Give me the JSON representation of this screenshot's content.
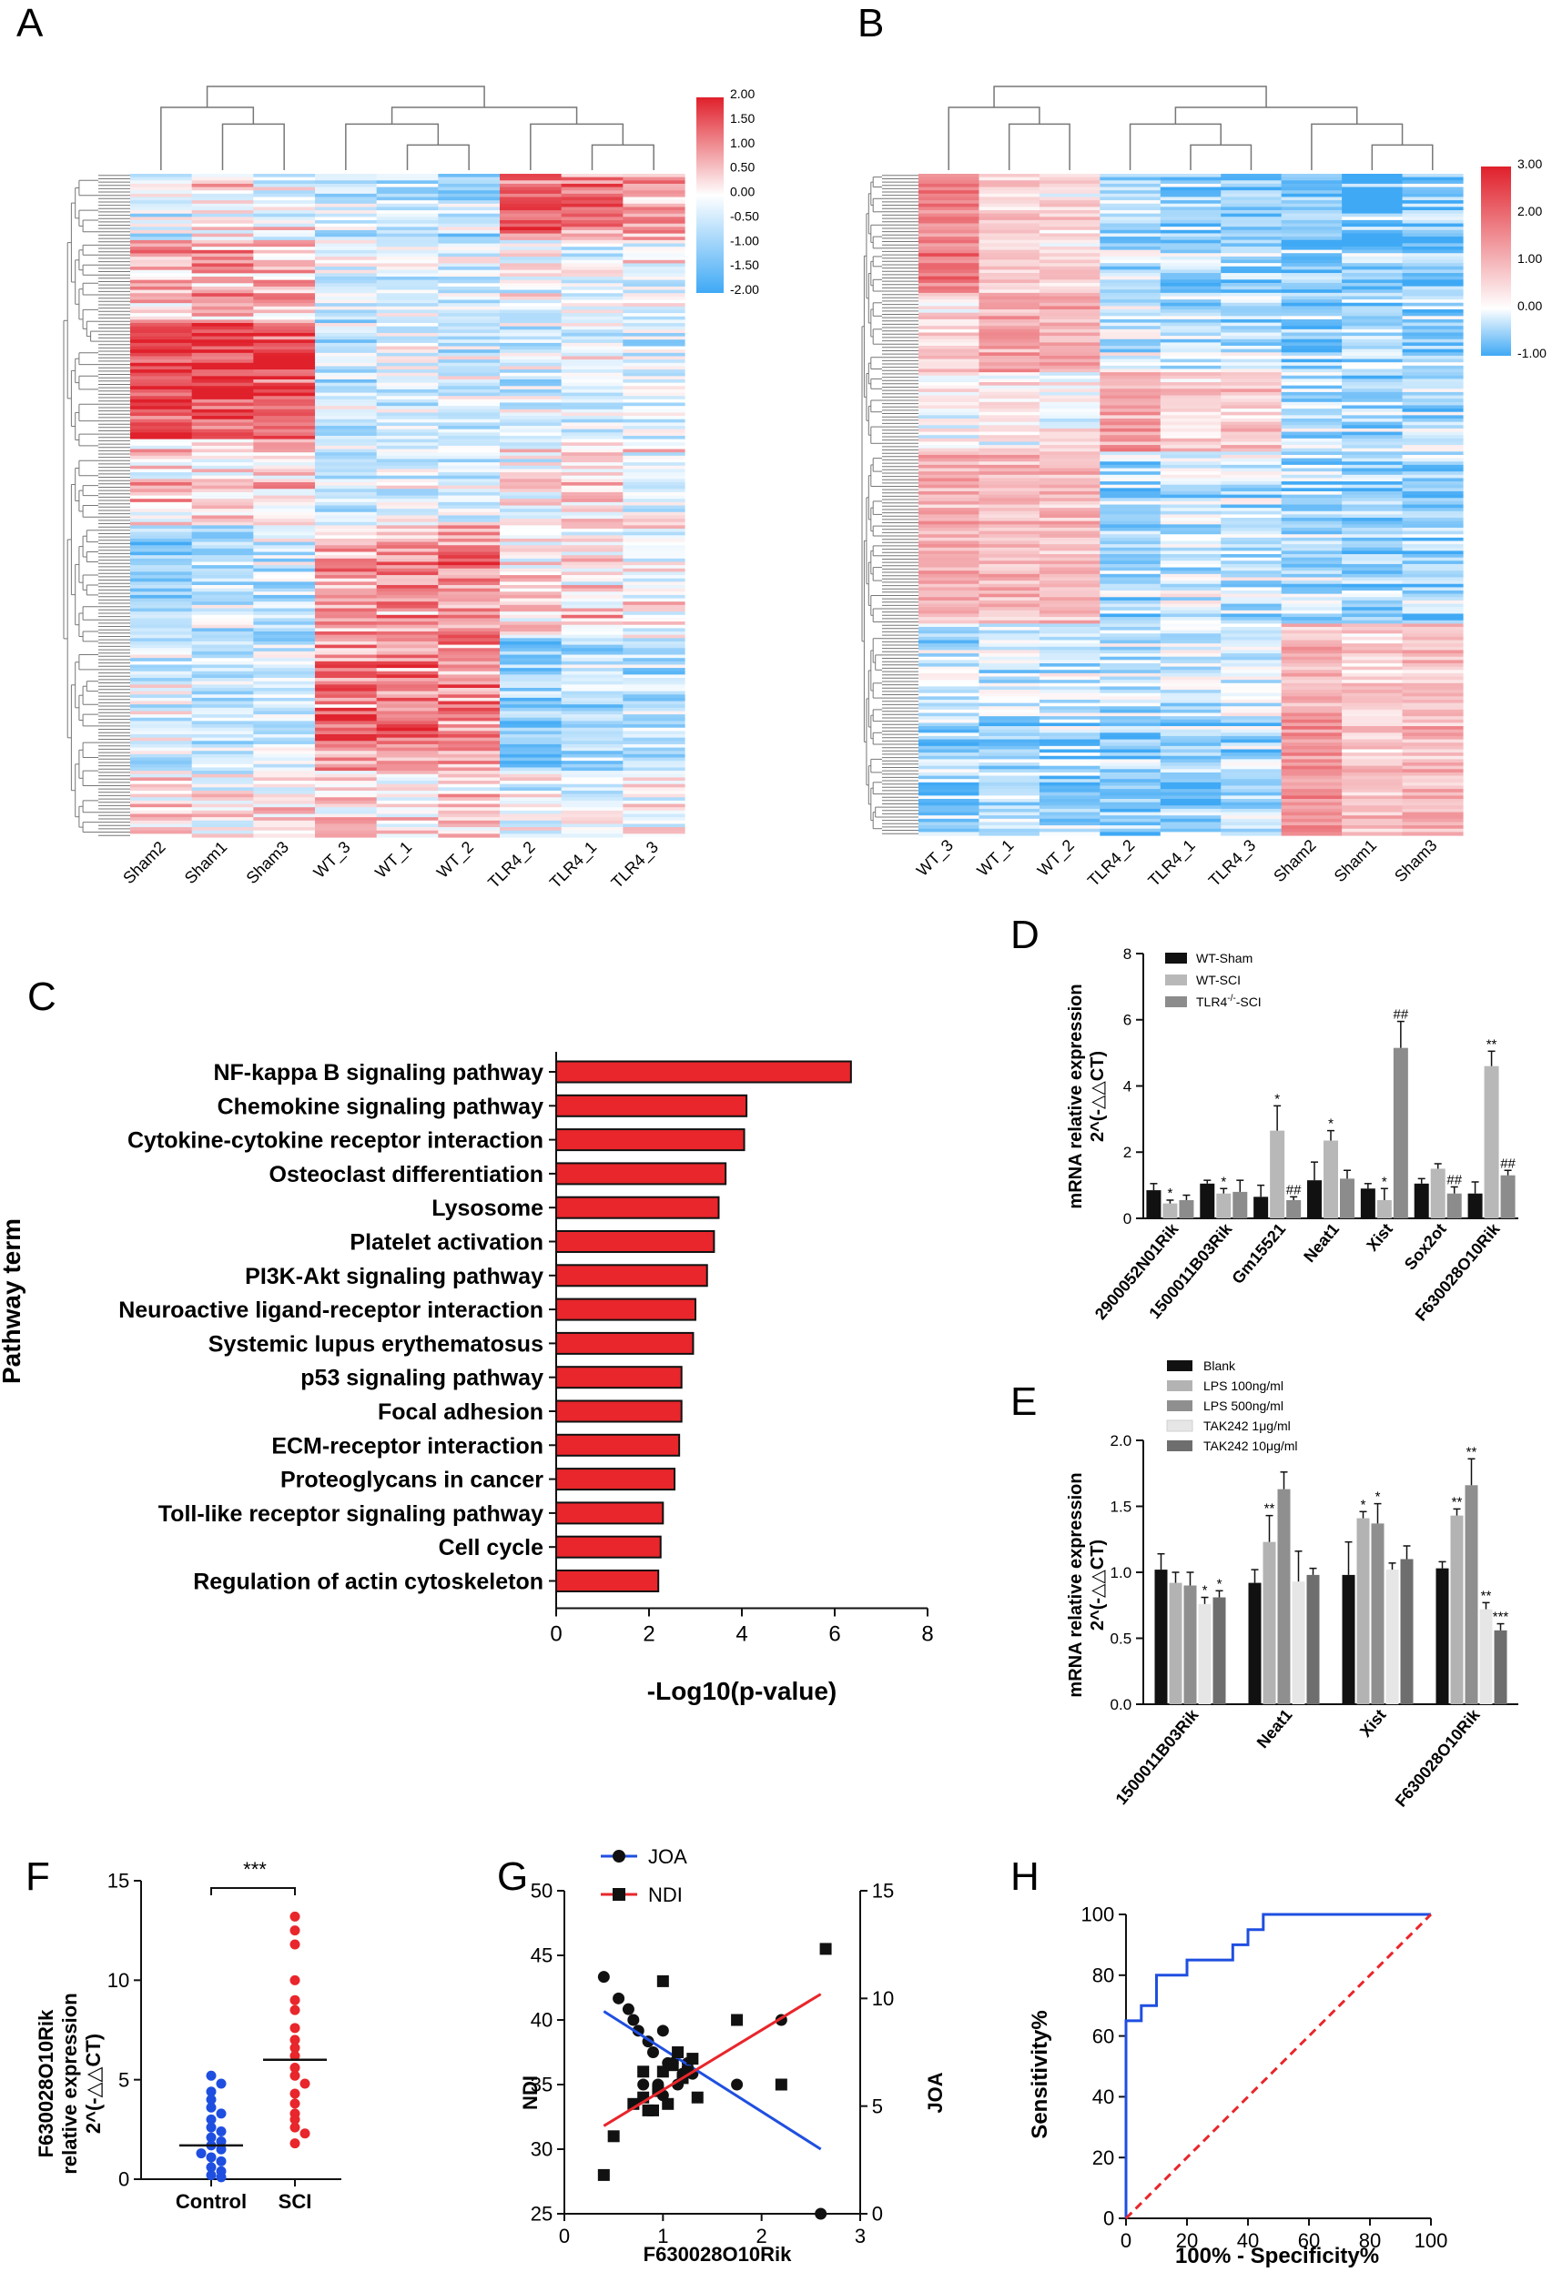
{
  "chart_data": [
    {
      "id": "A",
      "panel_label": "A",
      "type": "heatmap",
      "columns": [
        "Sham2",
        "Sham1",
        "Sham3",
        "WT_3",
        "WT_1",
        "WT_2",
        "TLR4_2",
        "TLR4_1",
        "TLR4_3"
      ],
      "colorbar_ticks": [
        "2.00",
        "1.50",
        "1.00",
        "0.50",
        "0.00",
        "-0.50",
        "-1.00",
        "-1.50",
        "-2.00"
      ],
      "color_range": [
        -2,
        2
      ],
      "colors": {
        "low": "#3fa9f5",
        "mid": "#ffffff",
        "high": "#e0202b"
      },
      "dendrogram": "rows and columns"
    },
    {
      "id": "B",
      "panel_label": "B",
      "type": "heatmap",
      "columns": [
        "WT_3",
        "WT_1",
        "WT_2",
        "TLR4_2",
        "TLR4_1",
        "TLR4_3",
        "Sham2",
        "Sham1",
        "Sham3"
      ],
      "colorbar_ticks": [
        "3.00",
        "2.00",
        "1.00",
        "0.00",
        "-1.00"
      ],
      "color_range": [
        -1,
        3
      ],
      "colors": {
        "low": "#3fa9f5",
        "mid": "#ffffff",
        "high": "#e0202b"
      },
      "dendrogram": "rows and columns"
    },
    {
      "id": "C",
      "panel_label": "C",
      "type": "bar",
      "orientation": "horizontal",
      "xlabel": "-Log10(p-value)",
      "ylabel": "Pathway term",
      "xlim": [
        0,
        8
      ],
      "xticks": [
        "0",
        "2",
        "4",
        "6",
        "8"
      ],
      "categories": [
        "NF-kappa B signaling pathway",
        "Chemokine signaling pathway",
        "Cytokine-cytokine receptor interaction",
        "Osteoclast differentiation",
        "Lysosome",
        "Platelet activation",
        "PI3K-Akt signaling pathway",
        "Neuroactive ligand-receptor interaction",
        "Systemic lupus erythematosus",
        "p53 signaling pathway",
        "Focal adhesion",
        "ECM-receptor interaction",
        "Proteoglycans in cancer",
        "Toll-like receptor signaling pathway",
        "Cell cycle",
        "Regulation of actin cytoskeleton"
      ],
      "values": [
        6.35,
        4.1,
        4.05,
        3.65,
        3.5,
        3.4,
        3.25,
        3.0,
        2.95,
        2.7,
        2.7,
        2.65,
        2.55,
        2.3,
        2.25,
        2.2
      ],
      "color": "#e8262b"
    },
    {
      "id": "D",
      "panel_label": "D",
      "type": "bar",
      "ylabel": [
        "mRNA relative expression",
        "2^(-△△CT)"
      ],
      "ylim": [
        0,
        8
      ],
      "yticks": [
        "0",
        "2",
        "4",
        "6",
        "8"
      ],
      "categories": [
        "2900052N01Rik",
        "1500011B03Rik",
        "Gm15521",
        "Neat1",
        "Xist",
        "Sox2ot",
        "F630028O10Rik"
      ],
      "legend": [
        "WT-Sham",
        "WT-SCI",
        "TLR4-/--SCI"
      ],
      "legend_main": [
        "WT-Sham",
        "WT-SCI",
        "TLR4"
      ],
      "legend_sup": "-/-",
      "legend_suffix": "-SCI",
      "series": [
        {
          "name": "WT-Sham",
          "color": "#111111",
          "values": [
            0.85,
            1.05,
            0.65,
            1.15,
            0.9,
            1.05,
            0.75
          ],
          "errors": [
            0.2,
            0.1,
            0.35,
            0.55,
            0.15,
            0.15,
            0.35
          ],
          "marks": [
            "",
            "",
            "",
            "",
            "",
            "",
            ""
          ]
        },
        {
          "name": "WT-SCI",
          "color": "#b8b8b8",
          "values": [
            0.45,
            0.75,
            2.65,
            2.35,
            0.55,
            1.5,
            4.6
          ],
          "errors": [
            0.1,
            0.15,
            0.75,
            0.3,
            0.35,
            0.15,
            0.45
          ],
          "marks": [
            "*",
            "*",
            "*",
            "*",
            "*",
            "",
            "**"
          ]
        },
        {
          "name": "TLR4-/--SCI",
          "color": "#8c8c8c",
          "values": [
            0.55,
            0.8,
            0.55,
            1.2,
            5.15,
            0.75,
            1.3
          ],
          "errors": [
            0.15,
            0.35,
            0.1,
            0.25,
            0.8,
            0.2,
            0.15
          ],
          "marks": [
            "",
            "",
            "##",
            "",
            "##",
            "##",
            "##"
          ]
        }
      ]
    },
    {
      "id": "E",
      "panel_label": "E",
      "type": "bar",
      "ylabel": [
        "mRNA relative expression",
        "2^(-△△CT)"
      ],
      "ylim": [
        0,
        2.0
      ],
      "yticks": [
        "0.0",
        "0.5",
        "1.0",
        "1.5",
        "2.0"
      ],
      "categories": [
        "1500011B03Rik",
        "Neat1",
        "Xist",
        "F630028O10Rik"
      ],
      "legend": [
        "Blank",
        "LPS 100ng/ml",
        "LPS 500ng/ml",
        "TAK242 1μg/ml",
        "TAK242 10μg/ml"
      ],
      "series": [
        {
          "name": "Blank",
          "color": "#111111",
          "values": [
            1.02,
            0.92,
            0.98,
            1.03
          ],
          "errors": [
            0.12,
            0.1,
            0.25,
            0.05
          ],
          "marks": [
            "",
            "",
            "",
            ""
          ]
        },
        {
          "name": "LPS 100ng/ml",
          "color": "#b3b3b3",
          "values": [
            0.92,
            1.23,
            1.41,
            1.43
          ],
          "errors": [
            0.08,
            0.2,
            0.05,
            0.05
          ],
          "marks": [
            "",
            "**",
            "*",
            "**"
          ]
        },
        {
          "name": "LPS 500ng/ml",
          "color": "#8f8f8f",
          "values": [
            0.9,
            1.63,
            1.37,
            1.66
          ],
          "errors": [
            0.1,
            0.13,
            0.15,
            0.2
          ],
          "marks": [
            "",
            "",
            "*",
            "**"
          ]
        },
        {
          "name": "TAK242 1μg/ml",
          "color": "#e6e6e6",
          "values": [
            0.76,
            0.93,
            1.02,
            0.72
          ],
          "errors": [
            0.05,
            0.23,
            0.05,
            0.05
          ],
          "marks": [
            "*",
            "",
            "",
            "**"
          ]
        },
        {
          "name": "TAK242 10μg/ml",
          "color": "#6e6e6e",
          "values": [
            0.81,
            0.98,
            1.1,
            0.56
          ],
          "errors": [
            0.05,
            0.05,
            0.1,
            0.05
          ],
          "marks": [
            "*",
            "",
            "",
            "***"
          ]
        }
      ]
    },
    {
      "id": "F",
      "panel_label": "F",
      "type": "scatter",
      "ylabel": [
        "F630028O10Rik",
        "relative expression",
        "2^(-△△CT)"
      ],
      "ylim": [
        0,
        15
      ],
      "yticks": [
        "0",
        "5",
        "10",
        "15"
      ],
      "categories": [
        "Control",
        "SCI"
      ],
      "significance": "***",
      "series": [
        {
          "name": "Control",
          "color": "#1f4fe0",
          "median": 1.7,
          "values": [
            5.2,
            4.8,
            4.4,
            4.0,
            3.6,
            3.3,
            3.0,
            2.6,
            2.4,
            2.1,
            1.9,
            1.7,
            1.5,
            1.3,
            1.1,
            0.9,
            0.6,
            0.4,
            0.2,
            0.1
          ]
        },
        {
          "name": "SCI",
          "color": "#e8262b",
          "median": 6.0,
          "values": [
            13.2,
            12.5,
            11.8,
            10.0,
            9.0,
            8.5,
            7.6,
            7.0,
            6.6,
            6.2,
            5.6,
            5.2,
            4.8,
            4.3,
            3.8,
            3.3,
            2.6,
            2.3,
            1.8,
            3.0
          ]
        }
      ]
    },
    {
      "id": "G",
      "panel_label": "G",
      "type": "scatter",
      "xlabel": "F630028O10Rik",
      "ylabel_left": "NDI",
      "ylabel_right": "JOA",
      "xlim": [
        0,
        3
      ],
      "ylim_left": [
        25,
        50
      ],
      "ylim_right": [
        0,
        15
      ],
      "xticks": [
        "0",
        "1",
        "2",
        "3"
      ],
      "yticks_left": [
        "25",
        "30",
        "35",
        "40",
        "45",
        "50"
      ],
      "yticks_right": [
        "0",
        "5",
        "10",
        "15"
      ],
      "legend": [
        "JOA",
        "NDI"
      ],
      "series": [
        {
          "name": "JOA",
          "marker": "circle",
          "line_color": "#1f4fe0",
          "axis": "right",
          "x": [
            0.4,
            0.55,
            0.65,
            0.75,
            0.85,
            0.9,
            1.0,
            1.05,
            1.1,
            1.2,
            1.25,
            1.3,
            0.8,
            0.95,
            1.15,
            1.75,
            2.2,
            2.6,
            0.7,
            1.0
          ],
          "y": [
            11.0,
            10.0,
            9.5,
            8.5,
            8.0,
            7.5,
            8.5,
            7.0,
            7.0,
            6.5,
            7.0,
            6.5,
            6.0,
            6.0,
            6.0,
            6.0,
            9.0,
            0.0,
            9.0,
            5.5
          ],
          "fit": [
            [
              0.4,
              9.4
            ],
            [
              2.6,
              3.0
            ]
          ]
        },
        {
          "name": "NDI",
          "marker": "square",
          "line_color": "#e8262b",
          "axis": "left",
          "x": [
            0.4,
            0.5,
            0.7,
            0.8,
            0.85,
            0.9,
            0.95,
            1.0,
            1.05,
            1.1,
            1.2,
            1.25,
            1.3,
            1.35,
            0.8,
            1.0,
            1.15,
            1.75,
            2.2,
            2.65
          ],
          "y": [
            28.0,
            31.0,
            33.5,
            34.0,
            33.0,
            33.0,
            34.5,
            36.0,
            33.5,
            36.5,
            35.5,
            36.0,
            37.0,
            34.0,
            36.0,
            43.0,
            37.5,
            40.0,
            35.0,
            45.5
          ],
          "fit": [
            [
              0.4,
              31.8
            ],
            [
              2.6,
              42.0
            ]
          ]
        }
      ]
    },
    {
      "id": "H",
      "panel_label": "H",
      "type": "line",
      "xlabel": "100% - Specificity%",
      "ylabel": "Sensitivity%",
      "xlim": [
        0,
        100
      ],
      "ylim": [
        0,
        100
      ],
      "xticks": [
        "0",
        "20",
        "40",
        "60",
        "80",
        "100"
      ],
      "yticks": [
        "0",
        "20",
        "40",
        "60",
        "80",
        "100"
      ],
      "series": [
        {
          "name": "ROC",
          "color": "#1f4fe0",
          "style": "step",
          "x": [
            0,
            0,
            5,
            5,
            10,
            10,
            20,
            20,
            35,
            35,
            40,
            40,
            45,
            45,
            100
          ],
          "y": [
            0,
            65,
            65,
            70,
            70,
            80,
            80,
            85,
            85,
            90,
            90,
            95,
            95,
            100,
            100
          ]
        },
        {
          "name": "Reference",
          "color": "#e8262b",
          "style": "dashed",
          "x": [
            0,
            100
          ],
          "y": [
            0,
            100
          ]
        }
      ]
    }
  ]
}
